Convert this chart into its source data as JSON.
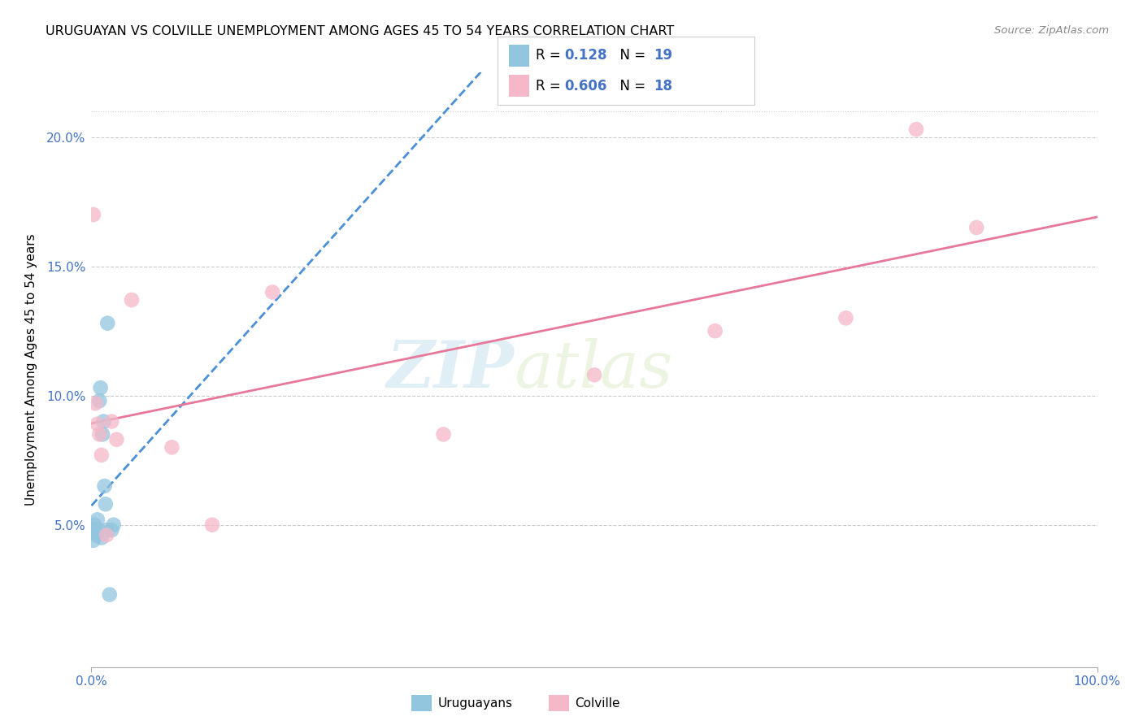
{
  "title": "URUGUAYAN VS COLVILLE UNEMPLOYMENT AMONG AGES 45 TO 54 YEARS CORRELATION CHART",
  "source": "Source: ZipAtlas.com",
  "ylabel": "Unemployment Among Ages 45 to 54 years",
  "xlim": [
    0,
    100
  ],
  "ylim": [
    -0.005,
    0.225
  ],
  "yticks": [
    0.05,
    0.1,
    0.15,
    0.2
  ],
  "ytick_labels": [
    "5.0%",
    "10.0%",
    "15.0%",
    "20.0%"
  ],
  "xticks": [
    0,
    100
  ],
  "xtick_labels": [
    "0.0%",
    "100.0%"
  ],
  "watermark_zip": "ZIP",
  "watermark_atlas": "atlas",
  "uruguayan_R": "0.128",
  "uruguayan_N": "19",
  "colville_R": "0.606",
  "colville_N": "18",
  "uruguayan_color": "#92c5de",
  "colville_color": "#f4b8c8",
  "uruguayan_line_color": "#4a90d9",
  "colville_line_color": "#e8789a",
  "uruguayan_x": [
    0.1,
    0.2,
    0.3,
    0.4,
    0.5,
    0.6,
    0.7,
    0.8,
    0.9,
    1.0,
    1.1,
    1.2,
    1.3,
    1.4,
    1.5,
    1.6,
    1.8,
    2.0,
    2.2
  ],
  "uruguayan_y": [
    0.048,
    0.044,
    0.05,
    0.047,
    0.046,
    0.052,
    0.048,
    0.098,
    0.103,
    0.045,
    0.085,
    0.09,
    0.065,
    0.058,
    0.048,
    0.128,
    0.023,
    0.048,
    0.05
  ],
  "colville_x": [
    0.2,
    0.4,
    0.6,
    0.8,
    1.0,
    1.5,
    2.0,
    2.5,
    4.0,
    8.0,
    12.0,
    18.0,
    35.0,
    50.0,
    62.0,
    75.0,
    82.0,
    88.0
  ],
  "colville_y": [
    0.17,
    0.097,
    0.089,
    0.085,
    0.077,
    0.046,
    0.09,
    0.083,
    0.137,
    0.08,
    0.05,
    0.14,
    0.085,
    0.108,
    0.125,
    0.13,
    0.203,
    0.165
  ]
}
